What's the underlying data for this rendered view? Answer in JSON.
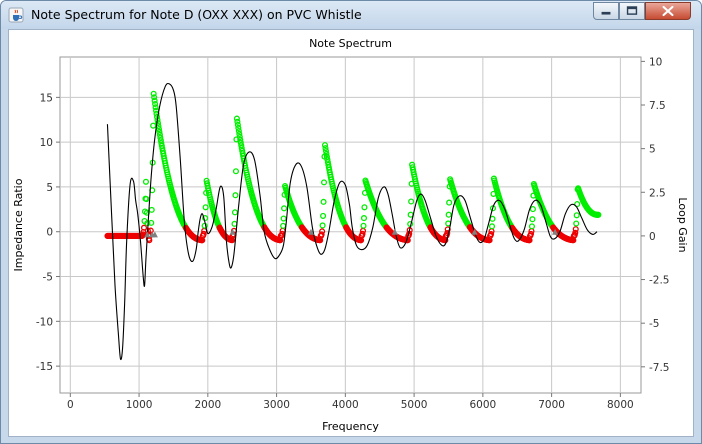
{
  "window": {
    "title": "Note Spectrum for Note D (OXX XXX) on PVC Whistle",
    "controls": [
      "minimize",
      "maximize",
      "close"
    ]
  },
  "colors": {
    "impedance_line": "#000000",
    "loop_gain_positive": "#00ee00",
    "loop_gain_negative": "#ee0000",
    "harmonic_markers": "#808080",
    "grid": "#c8c8c8"
  },
  "chart_data": {
    "type": "line",
    "title": "Note Spectrum",
    "xlabel": "Frequency",
    "ylabel": "Impedance Ratio",
    "y2label": "Loop Gain",
    "xlim": [
      -150,
      8300
    ],
    "ylim": [
      -18,
      19.5
    ],
    "y2lim": [
      -9,
      10.25
    ],
    "x_ticks": [
      "0",
      "1000",
      "2000",
      "3000",
      "4000",
      "5000",
      "6000",
      "7000",
      "8000"
    ],
    "y_ticks": [
      "15",
      "10",
      "5",
      "0",
      "-5",
      "-10",
      "-15"
    ],
    "y2_ticks": [
      "10",
      "7.5",
      "5",
      "2.5",
      "0",
      "-2.5",
      "-5",
      "-7.5"
    ],
    "grid": true,
    "series": [
      {
        "axis": "left",
        "x": [
          540,
          600,
          650,
          700,
          730,
          760,
          790,
          820,
          870,
          920,
          950,
          980,
          1020,
          1060,
          1080,
          1100,
          1140,
          1180,
          1230,
          1300,
          1380,
          1440,
          1500,
          1540,
          1600,
          1660,
          1720,
          1780,
          1830,
          1860,
          1890,
          1920,
          1960,
          2000,
          2060,
          2120,
          2180,
          2230,
          2270,
          2310,
          2340,
          2380,
          2450,
          2520,
          2600,
          2680,
          2760,
          2820,
          2900,
          2980,
          3050,
          3100,
          3140,
          3200,
          3280,
          3360,
          3440,
          3520,
          3580,
          3640,
          3700,
          3760,
          3840,
          3920,
          4000,
          4060,
          4100,
          4160,
          4240,
          4320,
          4400,
          4480,
          4560,
          4620,
          4680,
          4740,
          4800,
          4880,
          4960,
          5040,
          5100,
          5160,
          5240,
          5320,
          5400,
          5460,
          5520,
          5580,
          5660,
          5740,
          5820,
          5900,
          5960,
          6020,
          6080,
          6160,
          6240,
          6320,
          6400,
          6460,
          6520,
          6600,
          6680,
          6760,
          6840,
          6920,
          6980,
          7040,
          7120,
          7200,
          7280,
          7360,
          7440,
          7520,
          7600,
          7660
        ],
        "values": [
          12,
          2,
          -6,
          -11.5,
          -14.2,
          -13,
          -8,
          -1,
          5.3,
          5.6,
          3.5,
          2,
          -1,
          -5,
          -6,
          -3,
          2,
          6.5,
          10.5,
          14,
          16.2,
          16.5,
          15.8,
          14,
          8,
          1,
          -2.5,
          -3.3,
          -2,
          0,
          1.5,
          2,
          1,
          -0.2,
          0.5,
          2.5,
          5,
          4,
          -1,
          -3.5,
          -4,
          -2.5,
          3,
          7.5,
          8.9,
          8,
          4,
          0,
          -2,
          -3,
          -2.5,
          -1.5,
          1,
          5.5,
          7.5,
          7.3,
          5,
          0.5,
          -1.5,
          -2.5,
          -2,
          0,
          3.5,
          5.5,
          5.2,
          3,
          0.5,
          -1.5,
          -2,
          -1.5,
          0.5,
          3.8,
          5,
          4.2,
          2,
          -0.5,
          -1.8,
          -1.2,
          1,
          3.5,
          4.2,
          3.5,
          1.5,
          -0.5,
          -1.5,
          -1.3,
          0.5,
          3,
          4,
          3.5,
          1.5,
          -0.5,
          -1.2,
          -0.8,
          0.8,
          3,
          3.5,
          2.5,
          0.5,
          -0.8,
          -1,
          0.2,
          2.5,
          3.5,
          3,
          1,
          -0.5,
          -0.8,
          0,
          2,
          3,
          2.8,
          1.5,
          0.2,
          -0.3,
          0
        ]
      },
      {
        "axis": "right",
        "peaks": [
          {
            "x": 1100,
            "gain": 3.1
          },
          {
            "x": 1210,
            "gain": 8.2
          },
          {
            "x": 1980,
            "gain": 3.2
          },
          {
            "x": 2420,
            "gain": 6.8
          },
          {
            "x": 3120,
            "gain": 2.9
          },
          {
            "x": 3700,
            "gain": 5.3
          },
          {
            "x": 4290,
            "gain": 3.2
          },
          {
            "x": 4970,
            "gain": 4.1
          },
          {
            "x": 5520,
            "gain": 3.3
          },
          {
            "x": 6160,
            "gain": 3.3
          },
          {
            "x": 6740,
            "gain": 3.0
          },
          {
            "x": 7380,
            "gain": 2.8
          }
        ],
        "start_x": 540,
        "end_x": 7680,
        "end_gain": 1.5
      }
    ],
    "harmonic_markers": {
      "x": [
        1120,
        1190,
        1230,
        2360,
        3500,
        4720,
        5880,
        7050
      ],
      "y": [
        -0.3,
        -0.3,
        -0.3,
        0,
        0,
        0,
        0,
        0
      ]
    }
  }
}
